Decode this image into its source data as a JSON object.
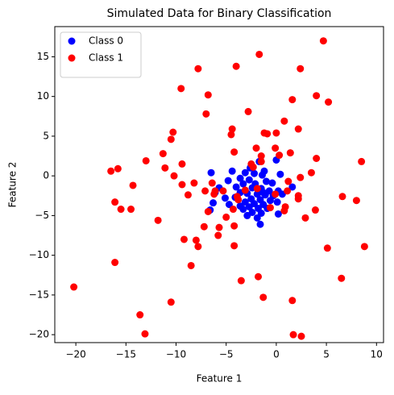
{
  "chart_data": {
    "type": "scatter",
    "title": "Simulated Data for Binary Classification",
    "x_label": "Feature 1",
    "y_label": "Feature 2",
    "xlim": [
      -22.1,
      10.7
    ],
    "ylim": [
      -21.0,
      18.8
    ],
    "xticks": [
      {
        "value": -20,
        "label": "−20"
      },
      {
        "value": -15,
        "label": "−15"
      },
      {
        "value": -10,
        "label": "−10"
      },
      {
        "value": -5,
        "label": "−5"
      },
      0,
      5,
      10
    ],
    "yticks": [
      {
        "value": -20,
        "label": "−20"
      },
      {
        "value": -15,
        "label": "−15"
      },
      {
        "value": -10,
        "label": "−10"
      },
      {
        "value": -5,
        "label": "−5"
      },
      0,
      5,
      10,
      15
    ],
    "grid": false,
    "legend": "upper left",
    "series": [
      {
        "name": "Class 0",
        "color": "#0000ff",
        "x": [
          0,
          -1.7,
          -2.6,
          -1.2,
          -3.1,
          -2.2,
          -4.4,
          -6.5,
          0.4,
          -1.4,
          -3.6,
          -2.7,
          -4.8,
          -1,
          -0.4,
          -2.1,
          -3.3,
          1.6,
          -5.7,
          -4,
          -2.4,
          -1.5,
          -0.7,
          0.2,
          -6.1,
          -3.6,
          -2.9,
          -1.9,
          -1.1,
          -0.3,
          0.6,
          -5.1,
          -4.1,
          -2.5,
          -1.6,
          -0.6,
          -3.1,
          -2.2,
          -1.3,
          0.1,
          -6.3,
          -4.7,
          -3.6,
          -2.7,
          -1.8,
          -0.9,
          -2.4,
          -1.5,
          0.2,
          -3.3,
          -6.6,
          -2.9,
          -1.9,
          -1.6,
          -2.1,
          -1.3
        ],
        "y": [
          2,
          1.8,
          1,
          0.6,
          0.4,
          0.3,
          0.6,
          0.4,
          0.2,
          0.1,
          -0.3,
          -0.5,
          -0.6,
          -0.7,
          -0.9,
          -1,
          -1,
          -1.4,
          -1.5,
          -1.4,
          -1.5,
          -1.6,
          -1.9,
          -1.9,
          -2.1,
          -2.1,
          -2.2,
          -2.3,
          -2.4,
          -2.5,
          -2.3,
          -2.8,
          -2.7,
          -2.9,
          -3,
          -3.1,
          -3.3,
          -3.5,
          -3.6,
          -3.3,
          -3.4,
          -3.6,
          -3.8,
          -3.9,
          -4.1,
          -4.1,
          -4.6,
          -4.7,
          -4.8,
          -4.2,
          -4.3,
          -5,
          -5.3,
          -6.1,
          -1.2,
          -2.1
        ]
      },
      {
        "name": "Class 1",
        "color": "#ff0000",
        "x": [
          4.7,
          -1.7,
          -7.8,
          -4,
          2.4,
          -6.8,
          -9.5,
          4,
          5.2,
          1.6,
          -2.8,
          -7,
          -10.5,
          0.8,
          -10.3,
          2.2,
          -4.4,
          -4.5,
          -1.2,
          -0.9,
          0,
          -11.3,
          -13,
          -9.4,
          -11.1,
          -2,
          -4.2,
          -0.1,
          1.4,
          -1.5,
          0.3,
          4,
          8.5,
          -2.5,
          -1.5,
          -2.3,
          -10.2,
          3.5,
          2.4,
          -16.5,
          -15.8,
          -14.3,
          -8.2,
          -6.4,
          -9.4,
          1.2,
          -7.1,
          -6.1,
          -5.3,
          -8.8,
          -6.2,
          -3.1,
          1.1,
          2.2,
          2.2,
          6.6,
          8,
          -16.1,
          -15.5,
          -14.5,
          -6.8,
          -4.3,
          -0.6,
          0.9,
          0.8,
          3.9,
          2.9,
          -11.8,
          -5,
          -5.7,
          -4.2,
          -7.2,
          -5.8,
          -9.2,
          -8,
          -7.8,
          -4.2,
          5.1,
          8.8,
          -16.1,
          -8.5,
          -3.5,
          -1.8,
          6.5,
          -20.2,
          -1.3,
          -10.5,
          1.6,
          -13.6,
          -13.1,
          1.7,
          2.5,
          -3.9,
          -3.8,
          -0.1,
          -1.9
        ],
        "y": [
          17,
          15.3,
          13.5,
          13.8,
          13.5,
          10.2,
          11,
          10.1,
          9.3,
          9.6,
          8.1,
          7.8,
          4.6,
          6.9,
          5.5,
          5.9,
          5.9,
          5.2,
          5.4,
          5.3,
          5.4,
          2.8,
          1.9,
          1.5,
          1,
          3.5,
          3,
          3.5,
          2.9,
          2.5,
          2.6,
          2.2,
          1.8,
          1.5,
          1.8,
          1.1,
          0,
          0.4,
          -0.2,
          0.6,
          0.9,
          -1.2,
          -0.9,
          -0.9,
          -1.1,
          -0.7,
          -1.9,
          -1.9,
          -1.9,
          -2.4,
          -2.3,
          -1.8,
          -1.9,
          -2.5,
          -2.9,
          -2.6,
          -3.1,
          -3.3,
          -4.2,
          -4.2,
          -4.5,
          -4.2,
          -4,
          -3.9,
          -4.4,
          -4.3,
          -5.3,
          -5.6,
          -5.2,
          -6.5,
          -6.3,
          -6.4,
          -7.5,
          -8,
          -8.1,
          -8.9,
          -8.8,
          -9.1,
          -8.9,
          -10.9,
          -11.3,
          -13.2,
          -12.7,
          -12.9,
          -14,
          -15.3,
          -15.9,
          -15.7,
          -17.5,
          -19.9,
          -20,
          -20.2,
          -2.6,
          -3,
          -2.3,
          -1.6
        ]
      }
    ]
  }
}
